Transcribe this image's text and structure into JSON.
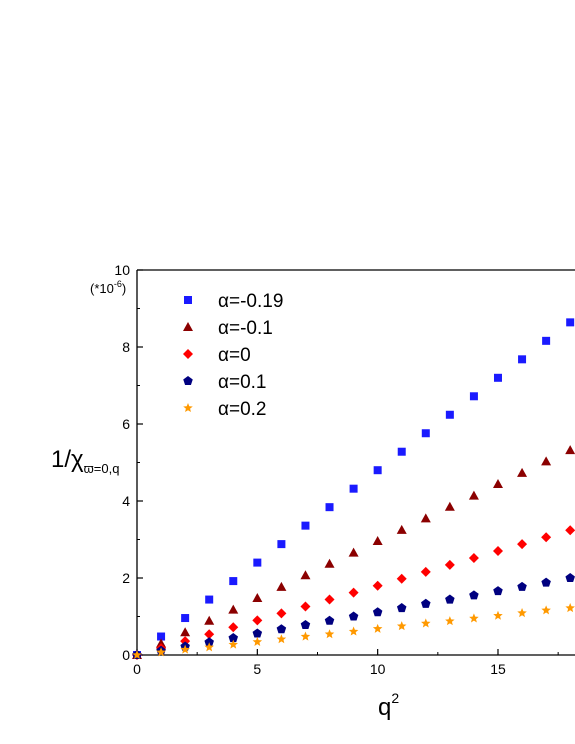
{
  "chart_data": {
    "type": "scatter",
    "title": "",
    "xlabel": "q",
    "xlabel_sup": "2",
    "ylabel": "1/χ",
    "ylabel_sub": "ϖ=0,q",
    "yscale_note": "(*10",
    "yscale_exp": "-6",
    "yscale_close": ")",
    "xlim": [
      0,
      18.2
    ],
    "ylim": [
      0,
      10
    ],
    "xticks": [
      0,
      5,
      10,
      15
    ],
    "yticks": [
      0,
      2,
      4,
      6,
      8,
      10
    ],
    "grid": false,
    "legend_position": "top-left",
    "series": [
      {
        "name": "α=-0.19",
        "marker": "square",
        "color": "#1a1aff",
        "x": [
          0,
          1,
          2,
          3,
          4,
          5,
          6,
          7,
          8,
          9,
          10,
          11,
          12,
          13,
          14,
          15,
          16,
          17,
          18
        ],
        "y": [
          0,
          0.48,
          0.96,
          1.44,
          1.92,
          2.4,
          2.88,
          3.36,
          3.84,
          4.32,
          4.8,
          5.28,
          5.76,
          6.24,
          6.72,
          7.2,
          7.68,
          8.16,
          8.64
        ]
      },
      {
        "name": "α=-0.1",
        "marker": "triangle",
        "color": "#8b0000",
        "x": [
          0,
          1,
          2,
          3,
          4,
          5,
          6,
          7,
          8,
          9,
          10,
          11,
          12,
          13,
          14,
          15,
          16,
          17,
          18
        ],
        "y": [
          0,
          0.3,
          0.59,
          0.89,
          1.18,
          1.48,
          1.77,
          2.07,
          2.37,
          2.66,
          2.96,
          3.25,
          3.55,
          3.85,
          4.14,
          4.44,
          4.73,
          5.03,
          5.32
        ]
      },
      {
        "name": "α=0",
        "marker": "diamond",
        "color": "#ff0000",
        "x": [
          0,
          1,
          2,
          3,
          4,
          5,
          6,
          7,
          8,
          9,
          10,
          11,
          12,
          13,
          14,
          15,
          16,
          17,
          18
        ],
        "y": [
          0,
          0.18,
          0.36,
          0.54,
          0.72,
          0.9,
          1.08,
          1.26,
          1.44,
          1.62,
          1.8,
          1.98,
          2.16,
          2.34,
          2.52,
          2.7,
          2.88,
          3.06,
          3.24
        ]
      },
      {
        "name": "α=0.1",
        "marker": "pentagon",
        "color": "#000080",
        "x": [
          0,
          1,
          2,
          3,
          4,
          5,
          6,
          7,
          8,
          9,
          10,
          11,
          12,
          13,
          14,
          15,
          16,
          17,
          18
        ],
        "y": [
          0,
          0.11,
          0.22,
          0.33,
          0.44,
          0.56,
          0.67,
          0.78,
          0.89,
          1.0,
          1.11,
          1.22,
          1.33,
          1.44,
          1.55,
          1.66,
          1.77,
          1.88,
          2.0
        ]
      },
      {
        "name": "α=0.2",
        "marker": "star",
        "color": "#ff9900",
        "x": [
          0,
          1,
          2,
          3,
          4,
          5,
          6,
          7,
          8,
          9,
          10,
          11,
          12,
          13,
          14,
          15,
          16,
          17,
          18
        ],
        "y": [
          0,
          0.07,
          0.14,
          0.2,
          0.27,
          0.34,
          0.41,
          0.48,
          0.54,
          0.61,
          0.68,
          0.75,
          0.82,
          0.88,
          0.95,
          1.02,
          1.09,
          1.16,
          1.22
        ]
      }
    ]
  }
}
